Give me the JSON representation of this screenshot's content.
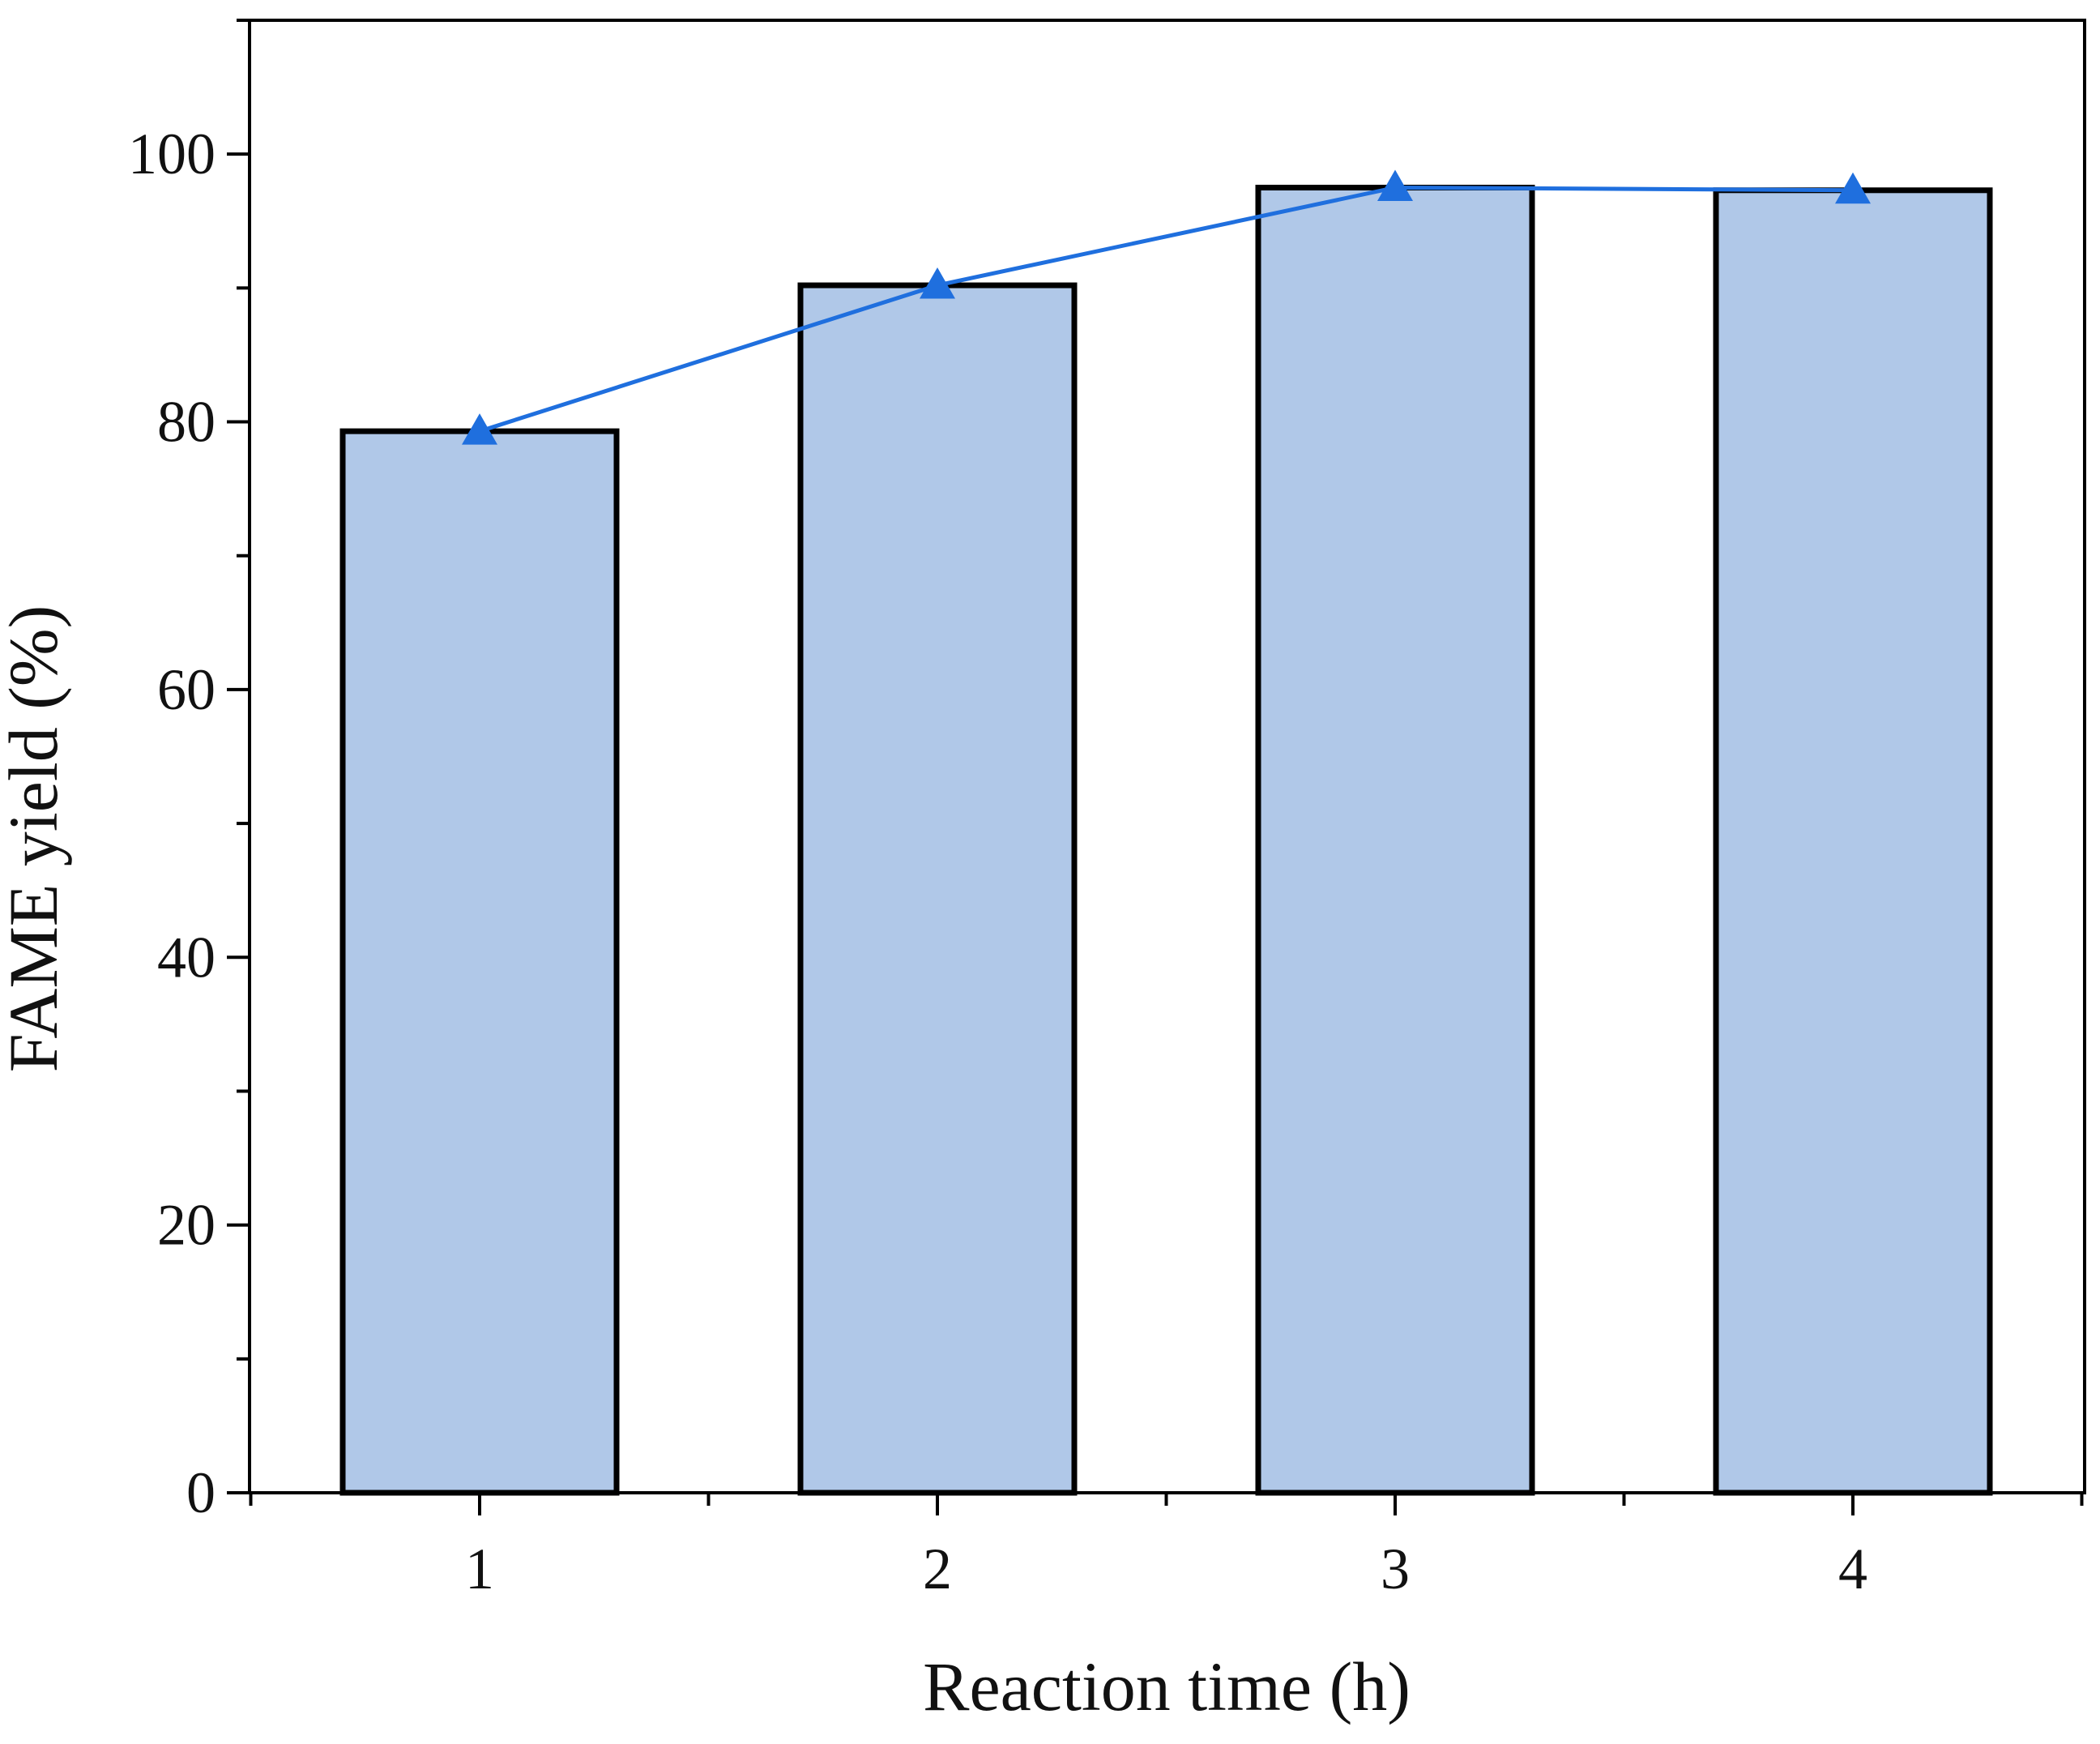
{
  "chart_data": {
    "type": "bar",
    "title": "",
    "xlabel": "Reaction time (h)",
    "ylabel": "FAME yield (%)",
    "categories": [
      "1",
      "2",
      "3",
      "4"
    ],
    "series": [
      {
        "type": "bar",
        "values": [
          79.3,
          90.2,
          97.5,
          97.3
        ],
        "color": "#b0c8e8",
        "edge_color": "#000000"
      },
      {
        "type": "line",
        "marker": "triangle",
        "values": [
          79.3,
          90.2,
          97.5,
          97.3
        ],
        "color": "#1f6fde"
      }
    ],
    "ylim": [
      0,
      110
    ],
    "yticks": [
      0,
      20,
      40,
      60,
      80,
      100
    ],
    "y_minor_step": 10,
    "grid": false,
    "legend": "none"
  }
}
